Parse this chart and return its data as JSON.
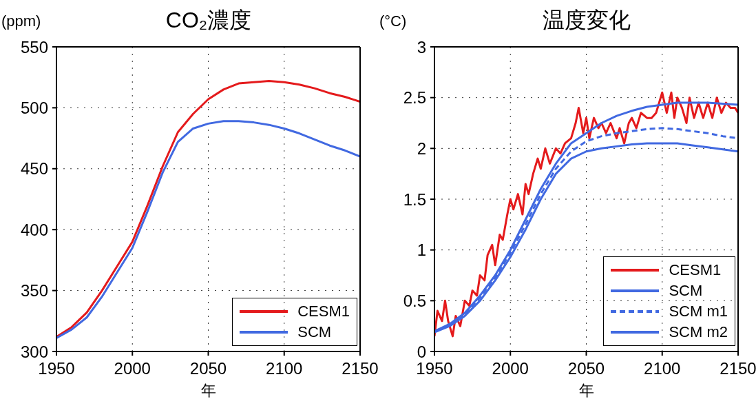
{
  "chart_data": [
    {
      "type": "line",
      "title": "CO₂濃度",
      "ylabel": "(ppm)",
      "xlabel": "年",
      "xlim": [
        1950,
        2150
      ],
      "xticks": [
        1950,
        2000,
        2050,
        2100,
        2150
      ],
      "ylim": [
        300,
        550
      ],
      "yticks": [
        300,
        350,
        400,
        450,
        500,
        550
      ],
      "grid": true,
      "legend": "bottom right",
      "line_style": "solid",
      "marker": "none",
      "x": [
        1950,
        1960,
        1970,
        1980,
        1990,
        2000,
        2010,
        2020,
        2030,
        2040,
        2050,
        2060,
        2070,
        2080,
        2090,
        2100,
        2110,
        2120,
        2130,
        2140,
        2150
      ],
      "series": [
        {
          "name": "CESM1",
          "color": "#e41a1c",
          "values": [
            312,
            320,
            332,
            350,
            370,
            390,
            420,
            452,
            480,
            495,
            507,
            515,
            520,
            521,
            522,
            521,
            519,
            516,
            512,
            509,
            505
          ]
        },
        {
          "name": "SCM",
          "color": "#4169e1",
          "values": [
            311,
            318,
            328,
            345,
            365,
            385,
            415,
            447,
            472,
            483,
            487,
            489,
            489,
            488,
            486,
            483,
            479,
            474,
            469,
            465,
            460
          ]
        }
      ]
    },
    {
      "type": "line",
      "title": "温度変化",
      "ylabel": "(°C)",
      "xlabel": "年",
      "xlim": [
        1950,
        2150
      ],
      "xticks": [
        1950,
        2000,
        2050,
        2100,
        2150
      ],
      "ylim": [
        0,
        3
      ],
      "yticks": [
        0,
        0.5,
        1,
        1.5,
        2,
        2.5,
        3
      ],
      "grid": true,
      "legend": "bottom right",
      "marker": "none",
      "series": [
        {
          "name": "CESM1",
          "color": "#e41a1c",
          "line_style": "solid",
          "x": [
            1950,
            1952,
            1955,
            1957,
            1959,
            1962,
            1964,
            1967,
            1970,
            1973,
            1975,
            1978,
            1980,
            1983,
            1985,
            1988,
            1990,
            1993,
            1995,
            1998,
            2000,
            2002,
            2005,
            2008,
            2010,
            2012,
            2015,
            2018,
            2020,
            2023,
            2026,
            2030,
            2033,
            2036,
            2040,
            2043,
            2045,
            2048,
            2050,
            2052,
            2055,
            2058,
            2060,
            2063,
            2066,
            2070,
            2072,
            2075,
            2078,
            2080,
            2083,
            2086,
            2090,
            2093,
            2096,
            2100,
            2103,
            2106,
            2108,
            2110,
            2113,
            2116,
            2118,
            2121,
            2124,
            2127,
            2130,
            2133,
            2136,
            2139,
            2142,
            2145,
            2148,
            2150
          ],
          "values": [
            0.15,
            0.4,
            0.3,
            0.5,
            0.3,
            0.15,
            0.35,
            0.25,
            0.5,
            0.45,
            0.6,
            0.55,
            0.75,
            0.7,
            0.95,
            1.05,
            0.85,
            1.15,
            1.1,
            1.35,
            1.5,
            1.4,
            1.55,
            1.35,
            1.65,
            1.55,
            1.75,
            1.9,
            1.8,
            2.0,
            1.85,
            2.0,
            1.95,
            2.05,
            2.1,
            2.25,
            2.4,
            2.15,
            2.3,
            2.1,
            2.3,
            2.2,
            2.25,
            2.15,
            2.25,
            2.1,
            2.2,
            2.05,
            2.25,
            2.3,
            2.2,
            2.35,
            2.3,
            2.3,
            2.35,
            2.55,
            2.35,
            2.55,
            2.3,
            2.5,
            2.4,
            2.25,
            2.5,
            2.3,
            2.45,
            2.3,
            2.45,
            2.3,
            2.5,
            2.35,
            2.45,
            2.4,
            2.4,
            2.35
          ]
        },
        {
          "name": "SCM",
          "color": "#4169e1",
          "line_style": "solid",
          "x": [
            1950,
            1960,
            1970,
            1980,
            1990,
            2000,
            2010,
            2020,
            2030,
            2040,
            2050,
            2060,
            2070,
            2080,
            2090,
            2100,
            2110,
            2120,
            2130,
            2140,
            2150
          ],
          "values": [
            0.2,
            0.27,
            0.38,
            0.55,
            0.75,
            1.0,
            1.3,
            1.6,
            1.85,
            2.05,
            2.15,
            2.25,
            2.32,
            2.37,
            2.41,
            2.43,
            2.45,
            2.45,
            2.45,
            2.44,
            2.43
          ]
        },
        {
          "name": "SCM m1",
          "color": "#4169e1",
          "line_style": "dashed",
          "x": [
            1950,
            1960,
            1970,
            1980,
            1990,
            2000,
            2010,
            2020,
            2030,
            2040,
            2050,
            2060,
            2070,
            2080,
            2090,
            2100,
            2110,
            2120,
            2130,
            2140,
            2150
          ],
          "values": [
            0.2,
            0.26,
            0.37,
            0.53,
            0.73,
            0.97,
            1.25,
            1.55,
            1.8,
            1.97,
            2.07,
            2.12,
            2.15,
            2.17,
            2.19,
            2.2,
            2.19,
            2.17,
            2.15,
            2.12,
            2.1
          ]
        },
        {
          "name": "SCM m2",
          "color": "#4169e1",
          "line_style": "solid",
          "x": [
            1950,
            1960,
            1970,
            1980,
            1990,
            2000,
            2010,
            2020,
            2030,
            2040,
            2050,
            2060,
            2070,
            2080,
            2090,
            2100,
            2110,
            2120,
            2130,
            2140,
            2150
          ],
          "values": [
            0.19,
            0.25,
            0.35,
            0.5,
            0.7,
            0.93,
            1.2,
            1.5,
            1.75,
            1.9,
            1.97,
            2.0,
            2.02,
            2.04,
            2.05,
            2.05,
            2.05,
            2.03,
            2.01,
            1.99,
            1.97
          ]
        }
      ]
    }
  ]
}
